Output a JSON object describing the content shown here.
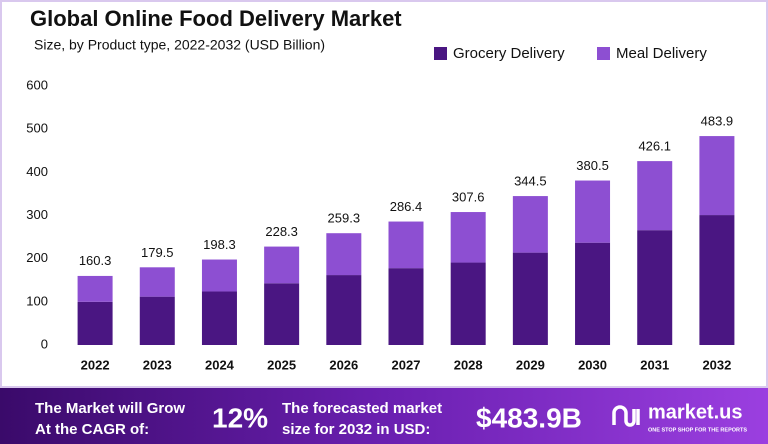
{
  "chart_data": {
    "type": "stacked-bar",
    "title": "Global Online Food Delivery Market",
    "subtitle": "Size, by Product type, 2022-2032 (USD Billion)",
    "categories": [
      "2022",
      "2023",
      "2024",
      "2025",
      "2026",
      "2027",
      "2028",
      "2029",
      "2030",
      "2031",
      "2032"
    ],
    "series": [
      {
        "name": "Grocery Delivery",
        "color": "#4a1682",
        "values": [
          100,
          112,
          124,
          143,
          162,
          178,
          191,
          214,
          237,
          266,
          301
        ]
      },
      {
        "name": "Meal Delivery",
        "color": "#8d4fd2",
        "values": [
          60,
          68,
          74,
          85,
          97,
          108,
          117,
          131,
          144,
          160,
          183
        ]
      }
    ],
    "totals": [
      160.3,
      179.5,
      198.3,
      228.3,
      259.3,
      286.4,
      307.6,
      344.5,
      380.5,
      426.1,
      483.9
    ],
    "ylim": [
      0,
      600
    ],
    "yticks": [
      0,
      100,
      200,
      300,
      400,
      500,
      600
    ],
    "grid": false,
    "legend": "top-right"
  },
  "footer": {
    "cagr_text": [
      "The Market will Grow",
      "At the CAGR of:"
    ],
    "cagr": "12%",
    "forecast_text": [
      "The forecasted market",
      "size for 2032 in USD:"
    ],
    "forecast": "$483.9B",
    "brand": "market.us",
    "tagline": "ONE STOP SHOP FOR THE REPORTS"
  }
}
